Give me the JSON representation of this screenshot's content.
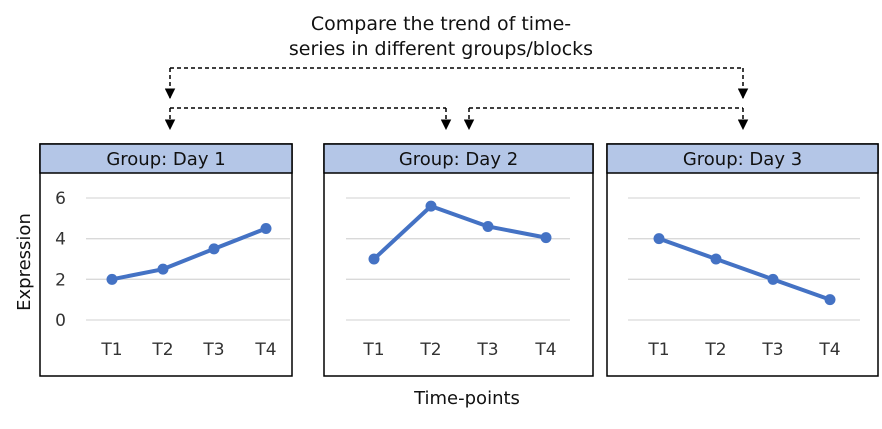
{
  "title_lines": [
    "Compare the trend of time-",
    "series in different groups/blocks"
  ],
  "y_axis_label": "Expression",
  "x_axis_label": "Time-points",
  "colors": {
    "line": "#4472C4",
    "header_fill": "#B4C6E7",
    "grid": "#d9d9d9",
    "border": "#000000"
  },
  "chart_data": [
    {
      "type": "line",
      "title": "Group: Day 1",
      "categories": [
        "T1",
        "T2",
        "T3",
        "T4"
      ],
      "values": [
        2,
        2.5,
        3.5,
        4.5
      ],
      "ylim": [
        0,
        6
      ],
      "yticks": [
        "0",
        "2",
        "4",
        "6"
      ],
      "grid": true
    },
    {
      "type": "line",
      "title": "Group: Day 2",
      "categories": [
        "T1",
        "T2",
        "T3",
        "T4"
      ],
      "values": [
        3,
        5.6,
        4.6,
        4.05
      ],
      "ylim": [
        0,
        6
      ],
      "grid": true
    },
    {
      "type": "line",
      "title": "Group: Day 3",
      "categories": [
        "T1",
        "T2",
        "T3",
        "T4"
      ],
      "values": [
        4,
        3,
        2,
        1
      ],
      "ylim": [
        0,
        6
      ],
      "grid": true
    }
  ]
}
